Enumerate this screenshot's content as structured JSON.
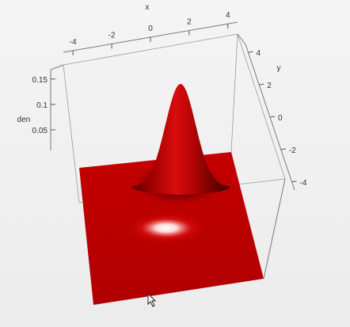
{
  "chart_data": {
    "type": "surface3d",
    "title": "",
    "function": "bivariate standard normal density",
    "xlabel": "x",
    "ylabel": "y",
    "zlabel": "den",
    "x_ticks": [
      "-4",
      "-2",
      "0",
      "2",
      "4"
    ],
    "y_ticks": [
      "4",
      "2",
      "0",
      "-2",
      "-4"
    ],
    "z_ticks": [
      "0.15",
      "0.1",
      "0.05"
    ],
    "x_range": [
      -4.5,
      4.5
    ],
    "y_range": [
      -4.5,
      4.5
    ],
    "z_range": [
      0,
      0.159
    ],
    "surface_color": "#cc0000",
    "peak": {
      "x": 0,
      "y": 0,
      "z": 0.159
    }
  }
}
